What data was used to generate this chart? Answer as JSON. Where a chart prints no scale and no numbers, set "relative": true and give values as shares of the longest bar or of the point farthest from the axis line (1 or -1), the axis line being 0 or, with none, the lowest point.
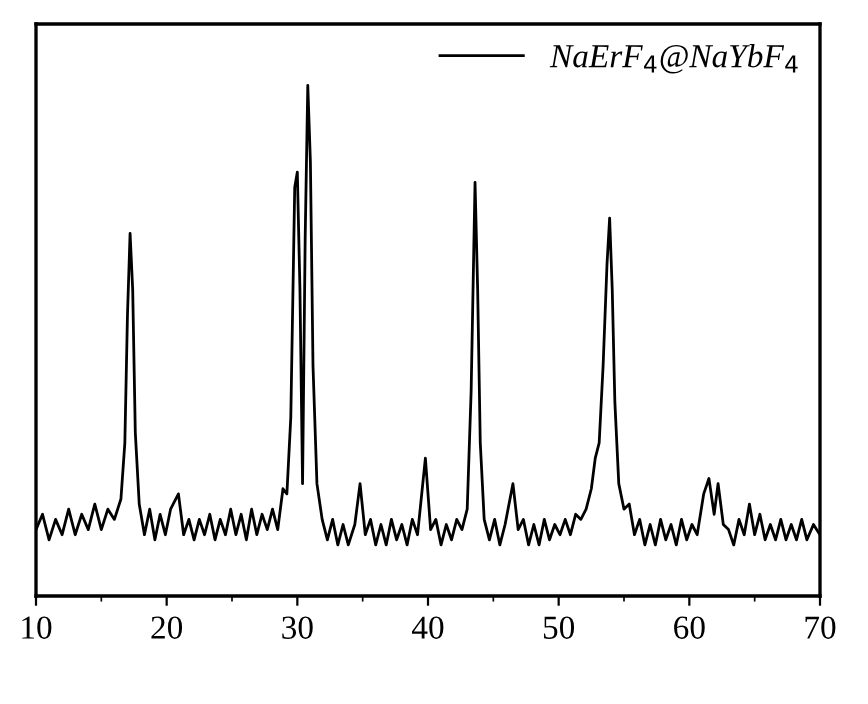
{
  "chart_data": {
    "type": "line",
    "relative": true,
    "xlim": [
      10,
      70
    ],
    "xticks": [
      10,
      20,
      30,
      40,
      50,
      60,
      70
    ],
    "legend": "top right",
    "tick_labels": "x",
    "grid": false,
    "series": [
      {
        "name": "NaErF$_{4}$@NaYbF$_{4}$",
        "color": "#000000",
        "x": [
          10,
          10.5,
          11,
          11.5,
          12,
          12.5,
          13,
          13.5,
          14,
          14.5,
          15,
          15.5,
          16,
          16.5,
          16.8,
          17.0,
          17.2,
          17.4,
          17.6,
          17.9,
          18.3,
          18.7,
          19.1,
          19.5,
          19.9,
          20.3,
          20.9,
          21.3,
          21.7,
          22.1,
          22.5,
          22.9,
          23.3,
          23.7,
          24.1,
          24.5,
          24.9,
          25.3,
          25.7,
          26.1,
          26.5,
          26.9,
          27.3,
          27.7,
          28.1,
          28.5,
          28.9,
          29.2,
          29.5,
          29.8,
          30.0,
          30.2,
          30.4,
          30.6,
          30.8,
          31.0,
          31.2,
          31.5,
          31.9,
          32.3,
          32.7,
          33.1,
          33.5,
          33.9,
          34.4,
          34.8,
          35.2,
          35.6,
          36,
          36.4,
          36.8,
          37.2,
          37.6,
          38,
          38.4,
          38.8,
          39.2,
          39.8,
          40.2,
          40.6,
          41,
          41.4,
          41.8,
          42.2,
          42.6,
          43.0,
          43.3,
          43.6,
          43.8,
          44.0,
          44.3,
          44.7,
          45.1,
          45.5,
          45.9,
          46.5,
          46.9,
          47.3,
          47.7,
          48.1,
          48.5,
          48.9,
          49.3,
          49.7,
          50.1,
          50.5,
          50.9,
          51.3,
          51.7,
          52.1,
          52.5,
          52.8,
          53.1,
          53.4,
          53.7,
          53.9,
          54.1,
          54.3,
          54.6,
          55.0,
          55.4,
          55.8,
          56.2,
          56.6,
          57,
          57.4,
          57.8,
          58.2,
          58.6,
          59,
          59.4,
          59.8,
          60.2,
          60.6,
          61.1,
          61.5,
          61.9,
          62.2,
          62.6,
          63,
          63.4,
          63.8,
          64.2,
          64.6,
          65,
          65.4,
          65.8,
          66.2,
          66.6,
          67,
          67.4,
          67.8,
          68.2,
          68.6,
          69,
          69.5,
          70
        ],
        "values": [
          0.13,
          0.16,
          0.11,
          0.15,
          0.12,
          0.17,
          0.12,
          0.16,
          0.13,
          0.18,
          0.13,
          0.17,
          0.15,
          0.19,
          0.3,
          0.55,
          0.71,
          0.6,
          0.32,
          0.18,
          0.12,
          0.17,
          0.11,
          0.16,
          0.12,
          0.17,
          0.2,
          0.12,
          0.15,
          0.11,
          0.15,
          0.12,
          0.16,
          0.11,
          0.15,
          0.12,
          0.17,
          0.12,
          0.16,
          0.11,
          0.17,
          0.12,
          0.16,
          0.13,
          0.17,
          0.13,
          0.21,
          0.2,
          0.35,
          0.8,
          0.83,
          0.6,
          0.22,
          0.7,
          1.0,
          0.85,
          0.45,
          0.22,
          0.15,
          0.11,
          0.15,
          0.1,
          0.14,
          0.1,
          0.14,
          0.22,
          0.12,
          0.15,
          0.1,
          0.14,
          0.1,
          0.15,
          0.11,
          0.14,
          0.1,
          0.15,
          0.12,
          0.27,
          0.13,
          0.15,
          0.1,
          0.14,
          0.11,
          0.15,
          0.13,
          0.17,
          0.4,
          0.81,
          0.6,
          0.3,
          0.15,
          0.11,
          0.15,
          0.1,
          0.14,
          0.22,
          0.13,
          0.15,
          0.1,
          0.14,
          0.1,
          0.15,
          0.11,
          0.14,
          0.12,
          0.15,
          0.12,
          0.16,
          0.15,
          0.17,
          0.21,
          0.27,
          0.3,
          0.45,
          0.65,
          0.74,
          0.6,
          0.38,
          0.22,
          0.17,
          0.18,
          0.12,
          0.15,
          0.1,
          0.14,
          0.1,
          0.15,
          0.11,
          0.14,
          0.1,
          0.15,
          0.11,
          0.14,
          0.12,
          0.2,
          0.23,
          0.16,
          0.22,
          0.14,
          0.13,
          0.1,
          0.15,
          0.12,
          0.18,
          0.12,
          0.16,
          0.11,
          0.14,
          0.11,
          0.15,
          0.11,
          0.14,
          0.11,
          0.15,
          0.11,
          0.14,
          0.12
        ]
      }
    ]
  }
}
